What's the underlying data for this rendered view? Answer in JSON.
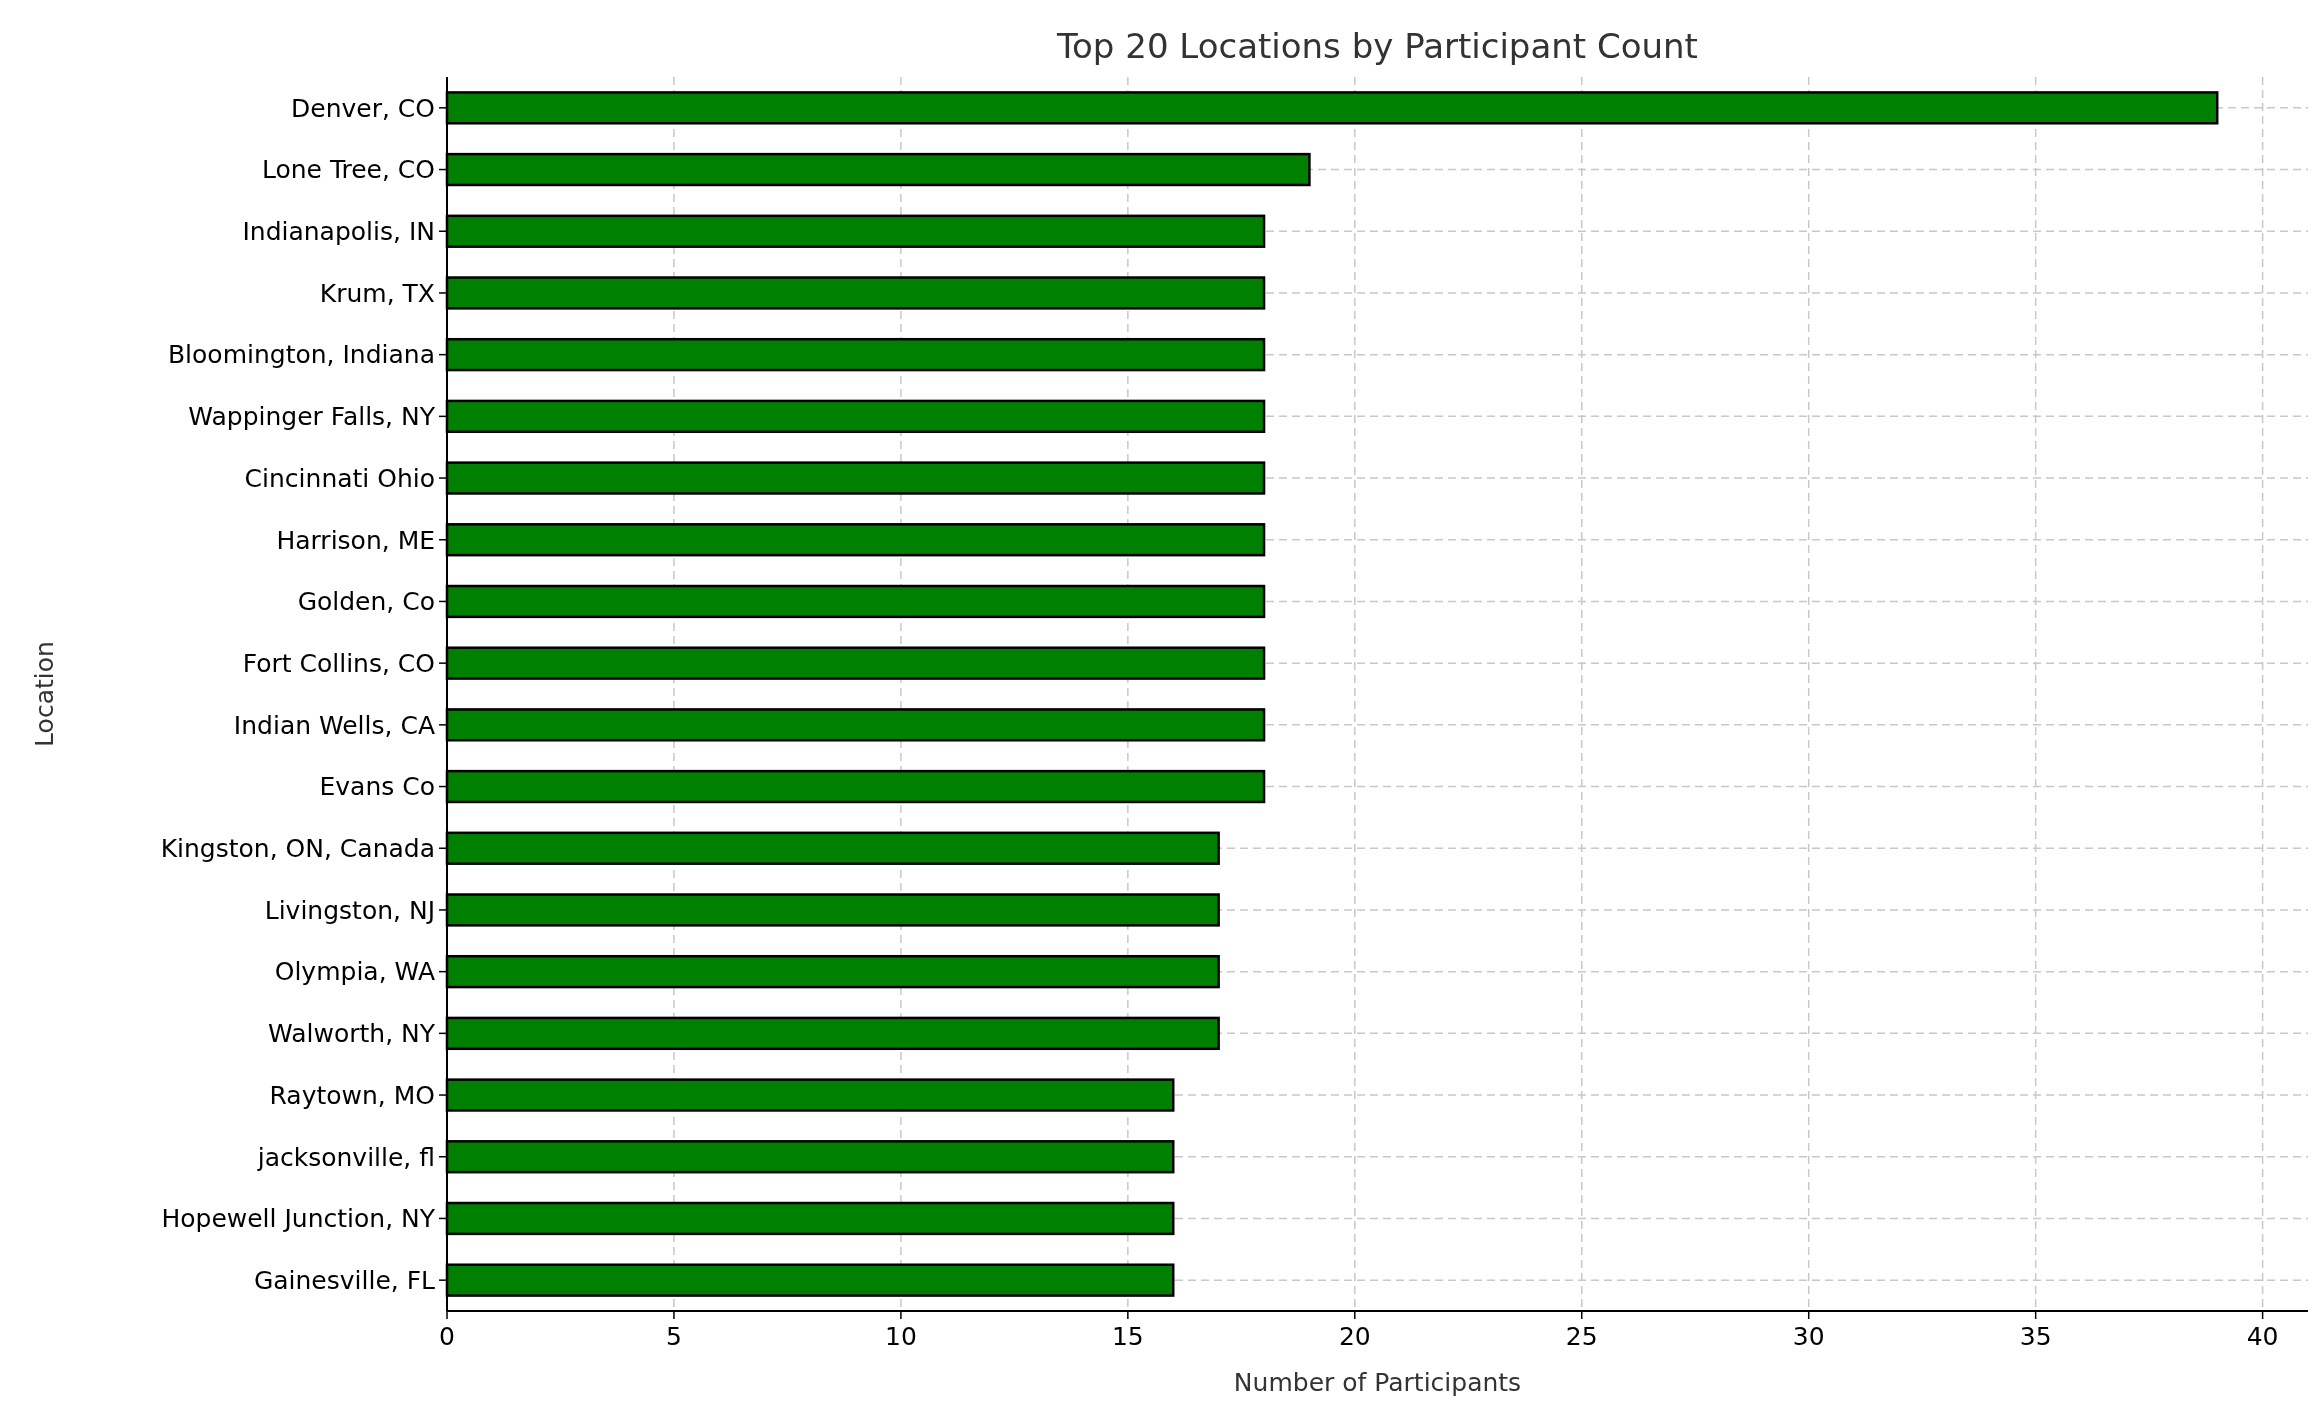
{
  "chart_data": {
    "type": "bar",
    "orientation": "horizontal",
    "title": "Top 20 Locations by Participant Count",
    "xlabel": "Number of Participants",
    "ylabel": "Location",
    "categories": [
      "Denver, CO",
      "Lone Tree, CO",
      "Indianapolis, IN",
      "Krum, TX",
      "Bloomington, Indiana",
      "Wappinger Falls, NY",
      "Cincinnati Ohio",
      "Harrison, ME",
      "Golden, Co",
      "Fort Collins, CO",
      "Indian Wells, CA",
      "Evans Co",
      "Kingston, ON, Canada",
      "Livingston, NJ",
      "Olympia, WA",
      "Walworth, NY",
      "Raytown, MO",
      "jacksonville, fl",
      "Hopewell Junction, NY",
      "Gainesville, FL"
    ],
    "values": [
      39,
      19,
      18,
      18,
      18,
      18,
      18,
      18,
      18,
      18,
      18,
      18,
      17,
      17,
      17,
      17,
      16,
      16,
      16,
      16
    ],
    "color": "#008000",
    "xlim": [
      0,
      41
    ],
    "xticks": [
      0,
      5,
      10,
      15,
      20,
      25,
      30,
      35,
      40
    ],
    "grid": true
  }
}
